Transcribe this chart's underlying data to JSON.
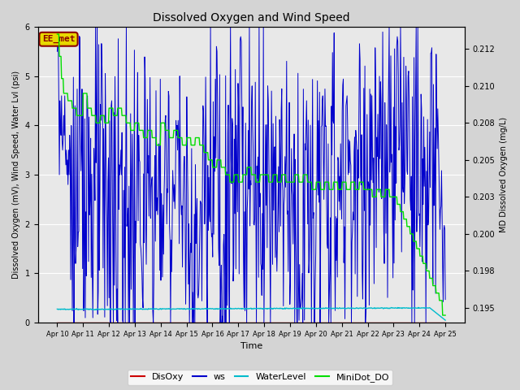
{
  "title": "Dissolved Oxygen and Wind Speed",
  "xlabel": "Time",
  "ylabel_left": "Dissolved Oxygen (mV), Wind Speed, Water Lvl (psi)",
  "ylabel_right": "MD Dissolved Oxygen (mg/L)",
  "ylim_left": [
    0.0,
    6.0
  ],
  "ylim_right": [
    0.194,
    0.214
  ],
  "background_color": "#d4d4d4",
  "plot_bg_color": "#e8e8e8",
  "annotation_text": "EE_met",
  "annotation_color": "#8b0000",
  "annotation_bg": "#e8d800",
  "colors": {
    "DisOxy": "#cc0000",
    "ws": "#0000cc",
    "WaterLevel": "#00bbcc",
    "MiniDot_DO": "#00dd00"
  },
  "legend_labels": [
    "DisOxy",
    "ws",
    "WaterLevel",
    "MiniDot_DO"
  ],
  "x_tick_labels": [
    "Apr 10",
    "Apr 11",
    "Apr 12",
    "Apr 13",
    "Apr 14",
    "Apr 15",
    "Apr 16",
    "Apr 17",
    "Apr 18",
    "Apr 19",
    "Apr 20",
    "Apr 21",
    "Apr 22",
    "Apr 23",
    "Apr 24",
    "Apr 25"
  ],
  "n_points": 720,
  "title_fontsize": 10,
  "label_fontsize": 7,
  "tick_fontsize": 7
}
